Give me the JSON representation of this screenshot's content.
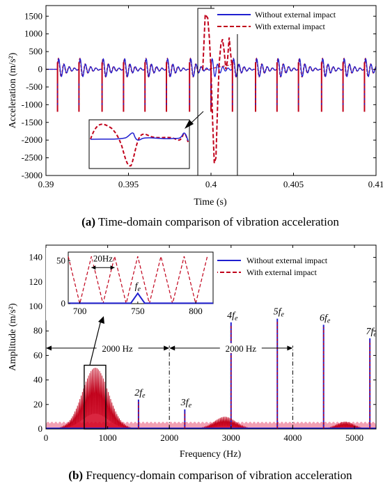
{
  "colors": {
    "without": "#1f1fd0",
    "with": "#c0001a",
    "fill": "#d4001e",
    "pink": "#f2a0b4"
  },
  "chart_data": [
    {
      "id": "time",
      "type": "line",
      "xlabel": "Time (s)",
      "ylabel": "Acceleration (m/s²)",
      "xlim": [
        0.39,
        0.41
      ],
      "ylim": [
        -3000,
        1800
      ],
      "x_ticks": [
        "0.39",
        "0.395",
        "0.4",
        "0.405",
        "0.41"
      ],
      "x_tick_values": [
        0.39,
        0.395,
        0.4,
        0.405,
        0.41
      ],
      "y_ticks": [
        "1500",
        "1000",
        "500",
        "0",
        "-500",
        "-1000",
        "-1500",
        "-2000",
        "-2500",
        "-3000"
      ],
      "y_tick_values": [
        1500,
        1000,
        500,
        0,
        -500,
        -1000,
        -1500,
        -2000,
        -2500,
        -3000
      ],
      "legend": [
        "Without external impact",
        "With external impact"
      ],
      "legend_position": "top-right",
      "spike_times": [
        0.3907,
        0.392,
        0.3934,
        0.3947,
        0.396,
        0.3973,
        0.3987,
        0.4,
        0.4013,
        0.4027,
        0.404,
        0.4053,
        0.4067,
        0.408,
        0.4093,
        0.4107
      ],
      "spike_depth": -1200,
      "baseline_peak": 350,
      "impact_curve": {
        "t": [
          0.3995,
          0.39965,
          0.3998,
          0.3999,
          0.4,
          0.4001,
          0.4002,
          0.4003,
          0.4004,
          0.4005,
          0.4006,
          0.4007,
          0.4008,
          0.4009,
          0.401,
          0.4011,
          0.4012,
          0.4013
        ],
        "a": [
          0,
          1550,
          1450,
          900,
          0,
          -1500,
          -2650,
          -2500,
          -1000,
          200,
          700,
          850,
          500,
          0,
          250,
          900,
          400,
          0
        ]
      },
      "highlight_box": {
        "x": [
          0.3992,
          0.4016
        ],
        "y": [
          -3000,
          1800
        ]
      },
      "inset": "zoomed view of impact region",
      "caption_bold": "(a)",
      "caption_text": "Time-domain comparison of vibration acceleration"
    },
    {
      "id": "freq",
      "type": "line",
      "xlabel": "Frequency (Hz)",
      "ylabel": "Amplitude (m/s²)",
      "xlim": [
        0,
        5350
      ],
      "ylim": [
        0,
        150
      ],
      "x_ticks": [
        "0",
        "1000",
        "2000",
        "3000",
        "4000",
        "5000"
      ],
      "x_tick_values": [
        0,
        1000,
        2000,
        3000,
        4000,
        5000
      ],
      "y_ticks": [
        "0",
        "20",
        "40",
        "60",
        "80",
        "100",
        "120",
        "140"
      ],
      "y_tick_values": [
        0,
        20,
        40,
        60,
        80,
        100,
        120,
        140
      ],
      "legend": [
        "Without external impact",
        "With external impact"
      ],
      "legend_position": "top-right",
      "harmonics": [
        {
          "f": 1500,
          "amp": 24,
          "label": "2f",
          "sub": "e"
        },
        {
          "f": 2250,
          "amp": 16,
          "label": "3f",
          "sub": "e"
        },
        {
          "f": 3000,
          "amp": 87,
          "label": "4f",
          "sub": "e"
        },
        {
          "f": 3750,
          "amp": 90,
          "label": "5f",
          "sub": "e"
        },
        {
          "f": 4500,
          "amp": 85,
          "label": "6f",
          "sub": "e"
        },
        {
          "f": 5250,
          "amp": 74,
          "label": "7f",
          "sub": "e"
        }
      ],
      "lobes": [
        {
          "center": 800,
          "width": 620,
          "peak": 50
        },
        {
          "center": 2900,
          "width": 520,
          "peak": 10
        },
        {
          "center": 4850,
          "width": 420,
          "peak": 6
        }
      ],
      "span_annotations": [
        {
          "from": 0,
          "to": 2000,
          "y": 66,
          "label": "2000 Hz"
        },
        {
          "from": 2000,
          "to": 4000,
          "y": 66,
          "label": "2000 Hz"
        }
      ],
      "dashdot_lines": [
        2000,
        4000
      ],
      "highlight_box": {
        "x": [
          620,
          970
        ],
        "y": [
          0,
          52
        ]
      },
      "inset": {
        "xlim": [
          690,
          815
        ],
        "ylim": [
          0,
          60
        ],
        "x_ticks": [
          "700",
          "750",
          "800"
        ],
        "x_tick_values": [
          700,
          750,
          800
        ],
        "y_ticks": [
          "0",
          "50"
        ],
        "y_tick_values": [
          0,
          50
        ],
        "spacing_label": "20Hz",
        "fe_label": "f",
        "fe_sub": "e",
        "fe_peak": 12,
        "peak_freqs": [
          690,
          710,
          730,
          750,
          770,
          790,
          810
        ]
      },
      "caption_bold": "(b)",
      "caption_text": "Frequency-domain comparison of vibration acceleration"
    }
  ]
}
